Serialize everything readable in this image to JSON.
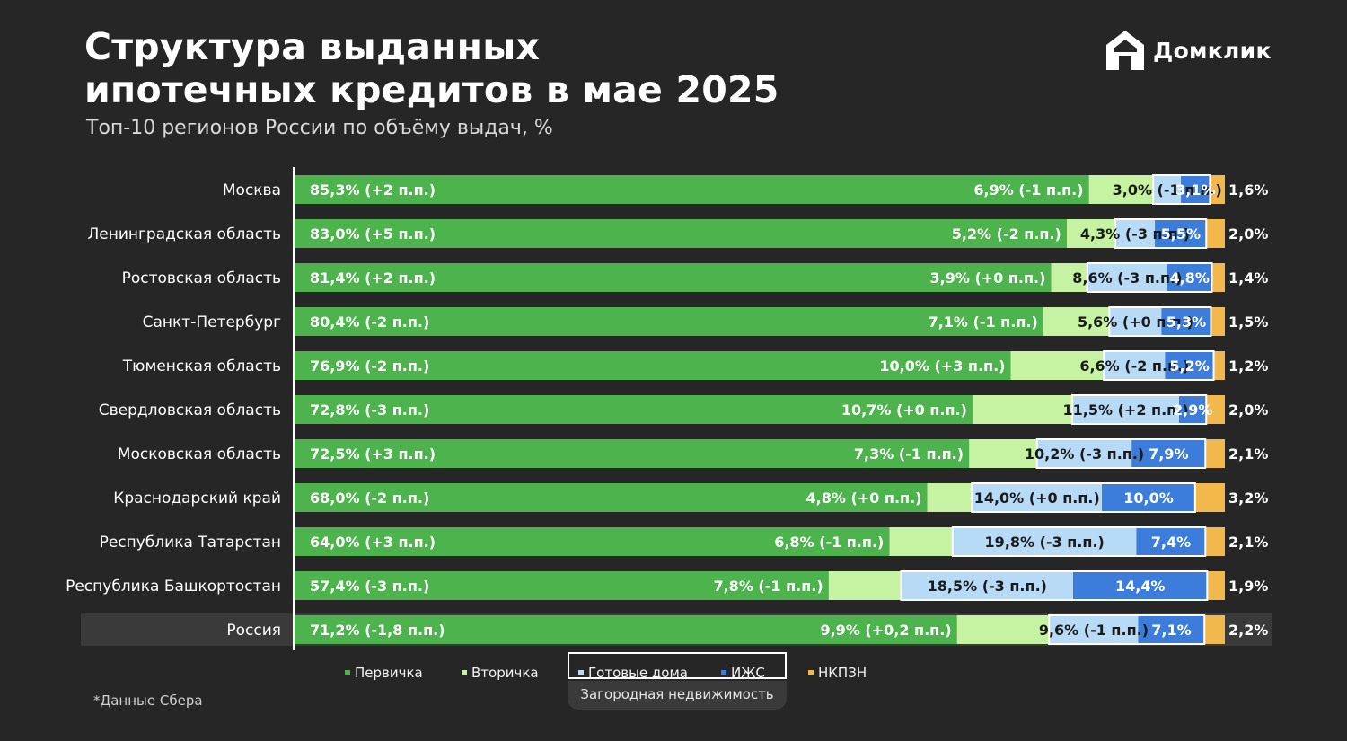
{
  "header": {
    "title_line1": "Структура выданных",
    "title_line2": "ипотечных кредитов в мае 2025",
    "subtitle": "Топ-10 регионов России по объёму выдач, %",
    "logo_text": "Домклик"
  },
  "legend": {
    "primary": "Первичка",
    "secondary": "Вторичка",
    "ready_houses": "Готовые дома",
    "izhs": "ИЖС",
    "nkpzn": "НКПЗН",
    "country_group": "Загородная недвижимость"
  },
  "footnote": "*Данные Сбера",
  "colors": {
    "primary": "#4db34d",
    "secondary": "#c5f3a2",
    "ready_houses": "#b7daf6",
    "izhs": "#3c7ddb",
    "nkpzn": "#f2b84b",
    "background": "#262626"
  },
  "chart_data": {
    "type": "bar",
    "orientation": "horizontal",
    "stacked": true,
    "unit": "%",
    "categories": [
      "Москва",
      "Ленинградская область",
      "Ростовская область",
      "Санкт-Петербург",
      "Тюменская область",
      "Свердловская область",
      "Московская область",
      "Краснодарский край",
      "Республика Татарстан",
      "Республика Башкортостан",
      "Россия"
    ],
    "highlighted_category": "Россия",
    "series": [
      {
        "name": "Первичка",
        "values": [
          85.3,
          83.0,
          81.4,
          80.4,
          76.9,
          72.8,
          72.5,
          68.0,
          64.0,
          57.4,
          71.2
        ],
        "labels": [
          "85,3% (+2  п.п.)",
          "83,0% (+5 п.п.)",
          "81,4% (+2 п.п.)",
          "80,4% (-2 п.п.)",
          "76,9% (-2 п.п.)",
          "72,8% (-3 п.п.)",
          "72,5% (+3 п.п.)",
          "68,0% (-2 п.п.)",
          "64,0% (+3 п.п.)",
          "57,4% (-3 п.п.)",
          "71,2% (-1,8 п.п.)"
        ]
      },
      {
        "name": "Вторичка",
        "values": [
          6.9,
          5.2,
          3.9,
          7.1,
          10.0,
          10.7,
          7.3,
          4.8,
          6.8,
          7.8,
          9.9
        ],
        "labels": [
          "6,9% (-1 п.п.)",
          "5,2% (-2 п.п.)",
          "3,9% (+0 п.п.)",
          "7,1% (-1 п.п.)",
          "10,0% (+3 п.п.)",
          "10,7% (+0 п.п.)",
          "7,3% (-1 п.п.)",
          "4,8% (+0 п.п.)",
          "6,8% (-1 п.п.)",
          "7,8% (-1 п.п.)",
          "9,9% (+0,2 п.п.)"
        ]
      },
      {
        "name": "Готовые дома",
        "values": [
          3.0,
          4.3,
          8.6,
          5.6,
          6.6,
          11.5,
          10.2,
          14.0,
          19.8,
          18.5,
          9.6
        ],
        "labels": [
          "3,0% (-1 п.п.)",
          "4,3% (-3 п.п.)",
          "8,6% (-3 п.п.)",
          "5,6% (+0 п.п.)",
          "6,6% (-2 п.п.)",
          "11,5% (+2 п.п.)",
          "10,2% (-3 п.п.)",
          "14,0% (+0 п.п.)",
          "19,8% (-3 п.п.)",
          "18,5% (-3 п.п.)",
          "9,6% (-1 п.п.)"
        ]
      },
      {
        "name": "ИЖС",
        "values": [
          3.1,
          5.5,
          4.8,
          5.3,
          5.2,
          2.9,
          7.9,
          10.0,
          7.4,
          14.4,
          7.1
        ],
        "labels": [
          "3,1%",
          "5,5%",
          "4,8%",
          "5,3%",
          "5,2%",
          "2,9%",
          "7,9%",
          "10,0%",
          "7,4%",
          "14,4%",
          "7,1%"
        ]
      },
      {
        "name": "НКПЗН",
        "values": [
          1.6,
          2.0,
          1.4,
          1.5,
          1.2,
          2.0,
          2.1,
          3.2,
          2.1,
          1.9,
          2.2
        ],
        "labels": [
          "1,6%",
          "2,0%",
          "1,4%",
          "1,5%",
          "1,2%",
          "2,0%",
          "2,1%",
          "3,2%",
          "2,1%",
          "1,9%",
          "2,2%"
        ]
      }
    ],
    "xlim": [
      0,
      100
    ],
    "grid": false,
    "legend_position": "bottom"
  }
}
